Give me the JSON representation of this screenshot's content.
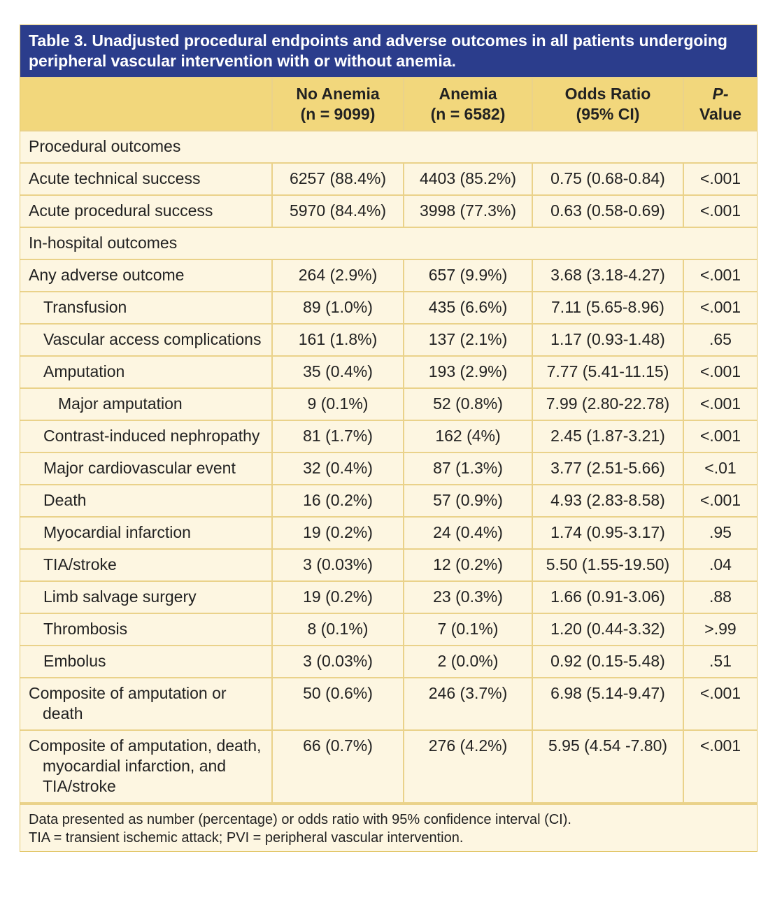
{
  "title": "Table 3. Unadjusted procedural endpoints and adverse outcomes in all patients undergoing peripheral vascular intervention with or without anemia.",
  "table": {
    "header": [
      [
        ""
      ],
      [
        "No Anemia",
        "(n = 9099)"
      ],
      [
        "Anemia",
        "(n = 6582)"
      ],
      [
        "Odds Ratio",
        "(95% CI)"
      ],
      [
        "P-",
        "Value"
      ]
    ],
    "rows": [
      [
        "Procedural outcomes"
      ],
      [
        "Acute technical success",
        "6257 (88.4%)",
        "4403 (85.2%)",
        "0.75 (0.68-0.84)",
        "<.001"
      ],
      [
        "Acute procedural success",
        "5970 (84.4%)",
        "3998 (77.3%)",
        "0.63 (0.58-0.69)",
        "<.001"
      ],
      [
        "In-hospital outcomes"
      ],
      [
        "Any adverse outcome",
        "264 (2.9%)",
        "657 (9.9%)",
        "3.68 (3.18-4.27)",
        "<.001"
      ],
      [
        "Transfusion",
        "89 (1.0%)",
        "435 (6.6%)",
        "7.11 (5.65-8.96)",
        "<.001"
      ],
      [
        "Vascular access complications",
        "161 (1.8%)",
        "137 (2.1%)",
        "1.17 (0.93-1.48)",
        ".65"
      ],
      [
        "Amputation",
        "35 (0.4%)",
        "193 (2.9%)",
        "7.77 (5.41-11.15)",
        "<.001"
      ],
      [
        "Major amputation",
        "9 (0.1%)",
        "52 (0.8%)",
        "7.99 (2.80-22.78)",
        "<.001"
      ],
      [
        "Contrast-induced nephropathy",
        "81 (1.7%)",
        "162 (4%)",
        "2.45 (1.87-3.21)",
        "<.001"
      ],
      [
        "Major cardiovascular event",
        "32 (0.4%)",
        "87 (1.3%)",
        "3.77 (2.51-5.66)",
        "<.01"
      ],
      [
        "Death",
        "16 (0.2%)",
        "57 (0.9%)",
        "4.93 (2.83-8.58)",
        "<.001"
      ],
      [
        "Myocardial infarction",
        "19 (0.2%)",
        "24 (0.4%)",
        "1.74 (0.95-3.17)",
        ".95"
      ],
      [
        "TIA/stroke",
        "3 (0.03%)",
        "12 (0.2%)",
        "5.50 (1.55-19.50)",
        ".04"
      ],
      [
        "Limb salvage surgery",
        "19 (0.2%)",
        "23 (0.3%)",
        "1.66 (0.91-3.06)",
        ".88"
      ],
      [
        "Thrombosis",
        "8 (0.1%)",
        "7 (0.1%)",
        "1.20 (0.44-3.32)",
        ">.99"
      ],
      [
        "Embolus",
        "3 (0.03%)",
        "2 (0.0%)",
        "0.92 (0.15-5.48)",
        ".51"
      ],
      [
        "Composite of amputation or death",
        "50 (0.6%)",
        "246 (3.7%)",
        "6.98 (5.14-9.47)",
        "<.001"
      ],
      [
        "Composite of amputation, death, myocardial infarction, and TIA/stroke",
        "66 (0.7%)",
        "276 (4.2%)",
        "5.95 (4.54 -7.80)",
        "<.001"
      ]
    ]
  },
  "footnotes": [
    "Data presented as number (percentage) or odds ratio with 95% confidence interval (CI).",
    "TIA =  transient ischemic attack; PVI = peripheral vascular intervention."
  ]
}
